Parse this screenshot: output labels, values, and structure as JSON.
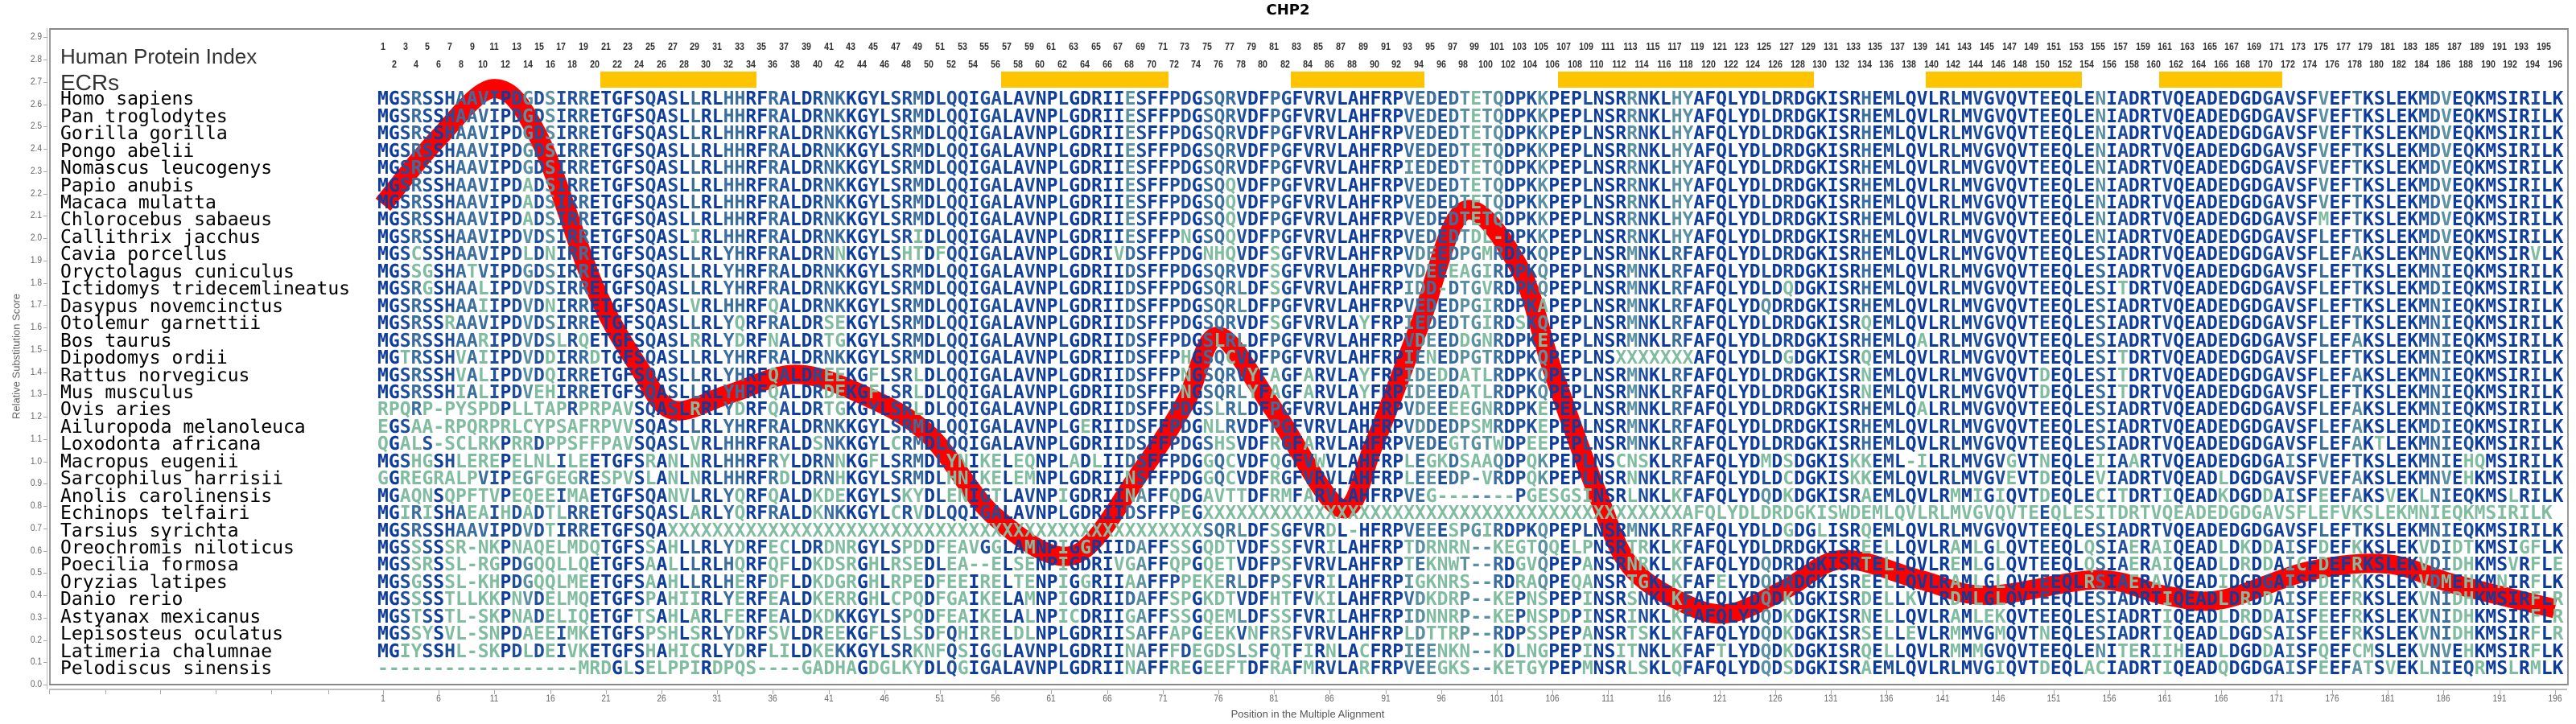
{
  "title": "CHP2",
  "labels": {
    "human_protein_index": "Human Protein Index",
    "ecrs": "ECRs"
  },
  "colors": {
    "curve": "#ff0000",
    "ecr": "#ffc400",
    "cons_high": "#0d3c9c",
    "cons_mid_high": "#1f4f9c",
    "cons_mid": "#3a6e9e",
    "cons_low": "#5a90a0",
    "cons_lowest": "#80bca0"
  },
  "chart_data": {
    "type": "line",
    "title": "CHP2",
    "xlabel": "Position in the Multiple Alignment",
    "ylabel": "Relative Substitution Score",
    "xlim": [
      1,
      196
    ],
    "ylim": [
      0.0,
      2.9
    ],
    "y_ticks": [
      "0.0",
      "0.1",
      "0.2",
      "0.3",
      "0.4",
      "0.5",
      "0.6",
      "0.7",
      "0.8",
      "0.9",
      "1.0",
      "1.1",
      "1.2",
      "1.3",
      "1.4",
      "1.5",
      "1.6",
      "1.7",
      "1.8",
      "1.9",
      "2.0",
      "2.1",
      "2.2",
      "2.3",
      "2.4",
      "2.5",
      "2.6",
      "2.7",
      "2.8",
      "2.9"
    ],
    "x_ticks": [
      1,
      6,
      11,
      16,
      21,
      26,
      31,
      36,
      41,
      46,
      51,
      56,
      61,
      66,
      71,
      76,
      81,
      86,
      91,
      96,
      101,
      106,
      111,
      116,
      121,
      126,
      131,
      136,
      141,
      146,
      151,
      156,
      161,
      166,
      171,
      176,
      181,
      186,
      191,
      196
    ],
    "position_count": 196,
    "series": [
      {
        "name": "Relative Substitution Score",
        "x": [
          1,
          6,
          11,
          15,
          20,
          24,
          27,
          32,
          38,
          44,
          50,
          56,
          63,
          69,
          73,
          76,
          81,
          87,
          90,
          94,
          98,
          103,
          106,
          110,
          113,
          118,
          122,
          127,
          132,
          139,
          145,
          155,
          161,
          166,
          174,
          181,
          187,
          196
        ],
        "y": [
          2.15,
          2.45,
          2.67,
          2.45,
          1.78,
          1.42,
          1.23,
          1.3,
          1.39,
          1.3,
          1.12,
          0.75,
          0.58,
          0.95,
          1.26,
          1.56,
          1.23,
          0.79,
          1.08,
          1.6,
          2.12,
          1.87,
          1.41,
          0.86,
          0.53,
          0.36,
          0.32,
          0.43,
          0.56,
          0.47,
          0.4,
          0.47,
          0.4,
          0.38,
          0.51,
          0.54,
          0.45,
          0.34
        ]
      }
    ],
    "ecrs": [
      [
        21,
        34
      ],
      [
        57,
        71
      ],
      [
        83,
        94
      ],
      [
        107,
        129
      ],
      [
        140,
        153
      ],
      [
        161,
        171
      ]
    ]
  },
  "alignment": [
    {
      "species": "Homo sapiens",
      "seq": "MGSRSSHAAVIPDGDSIRRETGFSQASLLRLHHRFRALDRNKKGYLSRMDLQQIGALAVNPLGDRIIESFFPDGSQRVDFPGFVRVLAHFRPVEDEDTETQDPKKPEPLNSRRNKLHYAFQLYDLDRDGKISRHEMLQVLRLMVGVQVTEEQLENIADRTVQEADEDGDGAVSFVEFTKSLEKMDVEQKMSIRILK"
    },
    {
      "species": "Pan troglodytes",
      "seq": "MGSRSSHAAVIPDGDSIRRETGFSQASLLRLHHRFRALDRNKKGYLSRMDLQQIGALAVNPLGDRIIESFFPDGSQRVDFPGFVRVLAHFRPVEDEDTETQDPKKPEPLNSRRNKLHYAFQLYDLDRDGKISRHEMLQVLRLMVGVQVTEEQLENIADRTVQEADEDGDGAVSFVEFTKSLEKMDVEQKMSIRILK"
    },
    {
      "species": "Gorilla gorilla",
      "seq": "MGSRSSHAAVIPDGDSIRRETGFSQASLLRLHHRFRALDRNKKGYLSRMDLQQIGALAVNPLGDRIIESFFPDGSQRVDFPGFVRVLAHFRPVEDEDTETQDPKKPEPLNSRRNKLHYAFQLYDLDRDGKISRHEMLQVLRLMVGVQVTEEQLENIADRTVQEADEDGDGAVSFVEFTKSLEKMDVEQKMSIRILK"
    },
    {
      "species": "Pongo abelii",
      "seq": "MGSRSSHAAVIPDGDSIRRETGFSQASLLRLHHRFRALDRNKKGYLSRMDLQQIGALAVNPLGDRIIESFFPDGSQRVDFPGFVRVLAHFRPVEDEDTETQDPKKPEPLNSRRNKLHYAFQLYDLDRDGKISRHEMLQVLRLMVGVQVTEEQLENIADRTVQEADEDGDGAVSFVEFTKSLEKMDVEQKMSIRILK"
    },
    {
      "species": "Nomascus leucogenys",
      "seq": "MGSRSSHAAVIPDGDSIRRETGFSQASLLRLHHRFRALDRNKKGYLSRMDLQQIGALAVNPLGDRIIESFFPDGSQRVDFPGFVRVLAHFRPIEDEDTETQDPKKPEPLNSRRNKLHYAFQLYDLDRDGKISRHEMLQVLRLMVGVQVTEEQLENIADRTVQEADEDGDGAVSFVEFTKSLEKMDVEQKMSIRILK"
    },
    {
      "species": "Papio anubis",
      "seq": "MGSRSSHAAVIPDADSIRRETGFSQASLLRLHHRFRALDRNKKGYLSRMDLQQIGALAVNPLGDRIIESFFPDGSQQVDFPGFVRVLAHFRPVEDEDTETQDPKKPEPLNSRRNKLHYAFQLYDLDRDGKISRHEMLQVLRLMVGVQVTEEQLENIADRTVQEADEDGDGAVSFVEFTKSLEKMDVEQKMSIRILK"
    },
    {
      "species": "Macaca mulatta",
      "seq": "MGSRSSHAAVIPDADSIRRETGFSQASLLRLHHRFRALDRNKKGYLSRMDLQQIGALAVNPLGDRIIESFFPDGSQQVDFPGFVRVLAHFRPVEDEDTETQDPKKPEPLNSRRNKLHYAFQLYDLDRDGKISRHEMLQVLRLMVGVQVTEEQLENIADRTVQEADEDGDGAVSFVEFTKSLEKMDVEQKMSIRILK"
    },
    {
      "species": "Chlorocebus sabaeus",
      "seq": "MGSRSSHAAVIPDADSIRRETGFSQASLLRLHHRFRALDRNKKGYLSRMDLQQIGALAVNPLGDRIIESFFPDGSQQVDFPGFVRVLAHFRPVEDEDTETQDPKKPEPLNSRRNKLHYAFQLYDLDRDGKISRHEMLQVLRLMVGVQVTEEQLENIADRTVQEADEDGDGAVSFMEFTKSLEKMDVEQKMSIRILK"
    },
    {
      "species": "Callithrix jacchus",
      "seq": "MGSRSSHAAVIPDVDSIRRETGFSQASLIRLHHRFRALDRNKKGYLSRIDLQQIGALAVNPLGDRIIESFFPNGSQQVDFPGFVRVLAHFRPVEDEDTDL-DPKKPEPLNSRRNKLHYAFQLYDLDRDGKISRHEMLQVLRLMVGVQVTEEQLENIADRTVQEADEDGDGAVSFLEFTKSLEKMDVEQKMSIRILK"
    },
    {
      "species": "Cavia porcellus",
      "seq": "MGSCSSHAAVIPDLDNIRRETGFSQASLLRLYHRFRALDRNNKGYLSHTDFQQIGALAVNPLGDRIVDSFFPDGNHQVDFSGFVRVLAHFRPVDEEDPGMRDPKQPEPLNSRMNKLRFAFQLYDLDRDGKISRHEMLQVLRLMVGVQVTEEQLESIADRTVQEADEDGDGAVSFLEFAKSLEKMNVEQKMSIRVLK"
    },
    {
      "species": "Oryctolagus cuniculus",
      "seq": "MGSSGSHATVIPDGDSIRRETGFSQASLLRLYHRFRALDRNKKGYLSRMDLQQIGALAVNPLGDRIIDSFFPDGSQRVDFSGFVRVLAHFRPVDEEEAGIRDPKQPEPLNSRMNKLRFAFQLYDLDRDGKISRHEMLQVLRLMVGVQVTEEQLESIADRTVQEADEDGDGAVSFLEFTKSLEKMNIEQKMSIRILK"
    },
    {
      "species": "Ictidomys tridecemlineatus",
      "seq": "MGSRGSHAALIPDVDSIRRETGFSQASLLRLYHRFRALDRNKKGYLSRMDLQQIGALAVNPLGDRIIDSFFPDGSQRLDFSGFVRVLAHFRPIDD-DTGVRDPKQPEPLNSRMNKLRFAFQLYDLDQDGKISRHEMLQVLRLMVGVQVTEEQLESITDRTVQEADEDGDGAVSFLEFTKSLEKMDIEQKMSIRILK"
    },
    {
      "species": "Dasypus novemcinctus",
      "seq": "MGSRSSHAAIIPDVDNIRRETGFSQASLVRLHHRFQALDRNKKGYLSRMDLQQIGALAVNPLGDRIIDSFFPDGSQRLDFPGFVRVLAHFRPVEDEDPGIRDPKAPEPLNSRMNKLRFAFQLYDQDRDGKISRHEMLQVLRLMVGVQVTEEQLESIADRTVQEADEDGDGAVSFLEFTKSLEKMNIEQKMSIRILK"
    },
    {
      "species": "Otolemur garnettii",
      "seq": "MGSRSSRAAVIPDVDSIRRETGFSQASLLRLYQRFRALDRSEKGYLSRMDLQQIGALAVNPLGDRIIDSFFPDGSQRVDFSGFVRVLAYFRPIEDEDTGIRDSKQPEPLNSRMNKLRFAFQLYDLDRDGKISRQEMLQVLRLMVGVQVTEEQLESIADRTVQEADEDGDGAVSFLEFTKSLEKMNIEQKMSIRILK"
    },
    {
      "species": "Bos taurus",
      "seq": "MGSRSSHAARIPDVDSLRQETGFSQASLRRLYDRFNALDRTGKGYLSRMDLQQIGALAVNPLGDRIIDSFFPDGSLRLDFPGFVRVLAHFRPVDEEDDGNRDPKEPEPLNSRMNKLRFAFQLYDLDRDGKISRHEMLQALRLMVGVQVTEEQLESIADRTVQEADEDGDGAVSFLEFAKSLEKMNIEQKMSIRILK"
    },
    {
      "species": "Dipodomys ordii",
      "seq": "MGTRSSHVAIIPDVDDIRRDTGFSQASLLRLYHRFRALDRNKKGYLSRMDLQQIGALAVNPLGDRIIDSFFPHGSQCVDFPGFVRVLAHFRPIENEDPGTRDPKQPEPLNSXXXXXXXAFQLYDLDGDGKISRQEMLQVLRLMVGVQVTEEQLESITDRTVQEADEDGDGAVSFLEFTKSLEKMNIEQKMSIRILK"
    },
    {
      "species": "Rattus norvegicus",
      "seq": "MGSRSSHVALIPDVDQIRRETGFSQASLLRLYHRFQALDREEKGFLSRLDLQQIGALAVNPLGDRIIDSFFPNGSQRVYFAGFARVLAYFRPIDEDDATLRDPKQPEPLNSRMNKLRFAFQLYDLDRDGKISRNEMLQVLRLMVGVQVTDEQLESITDRTVQEADEDGDGAVSFLEFAKSLEKMNIEQKMSIRILK"
    },
    {
      "species": "Mus musculus",
      "seq": "MGSRSSHIALIPDVEHIRRETGFSQASLLRLYHRFQALDRDEKGFLSRLDLQQIGALAVNPLGDRIIDSFFPNGSQRLYFAGFARVLAYFRPIDEEDATLRDPKQPEPLNSRMNKLRFAFQLYDLDRDGKISRNEMLQVLRLMVGVQVTDEQLESITDRTVQEADEDGDGAVSFLEFTKSLEKMNIEQKMSIRILK"
    },
    {
      "species": "Ovis aries",
      "seq": "RPQRP-PYSPDPLLTAPRPRPAVSQASLRRLYDRFQALDRTGKGYLSRLDLQQIGALAVNPLGDRIIDSFFPDGSLRLDFPGFVRVLAHFRPVDEEEEGNRDPKEPEPLNSRMNKLRFAFQLYDLDRDGKISRHEMLQALRLMVGVQVTEEQLESIADRTVQEADEDGDGAVSFLEFAKSLEKMNIEQKMSIRILK"
    },
    {
      "species": "Ailuropoda melanoleuca",
      "seq": "EGSAA-RPQRPRLCYPSAFRPVVSQASLLRLYHRFRALDRNKKGYLSRMDLQQIGALAVNPLGERIIDSFFPDGNLRVDFPGFVRVLAHFRPVDDEDPSMRDPKEPEPLNSRMNKLRFAFQLYDLDRDGKISRHEMLQVLRLMVGVQVTEEQLESIADRTVQEADEDGDGAVSFLEFAKSLEKMDIEQKMSIRILK"
    },
    {
      "species": "Loxodonta africana",
      "seq": "QGALS-SCLRKPRRDPPSFFPAVSQASLVRLHHRFRALDSNKKGYLCRMDLQQIGALAVNPLGDRIIDSFFPDGSHSVDFRGFARVLAHFRPVEDEGTGTWDPEEPEPLNSRMNKLRFAFQLYDLDRDGKISRHEMLQVLRLMVGVQVTEEQLESIADRTVQEADEDGDGAVSFLEFAKTLEKMNIEQKMSIRILK"
    },
    {
      "species": "Macropus eugenii",
      "seq": "MGSHGSHLEREPELNLILEETGFSRANLNRLHHRFRYLDRNNKGFLSRMDLYNIKELEQNPLADLIIDSFFPDGGQCVDFQGFVWVLAHFRPLEGKDSAAQDPQKPEPLNSCNSKLRFAFQLYDMDSDGKISKKEML-ILRLMVGVGVTNEQLEIIAARTVQEADEDGDGAISFVEFTKSLEKMNIEHQMSIRILK"
    },
    {
      "species": "Sarcophilus harrisii",
      "seq": "GGREGRALPVIPEGFGEGRESPVSLANLNRLHHRFRDLDRNHKGYLSRMDLHNIKELEMNPLGDRIINSFFPDGGQCVDFRGFVRVLAHFRPLEEEDP-VRDPQKPEPLNSRNNKLRFAFQLYDLDCDGKISKKEMLQVLRLMVGVEVTDEQLEVIADRTVQEADLDGDGAVSFVEFAKSLEKMNVEHKMSIRILK"
    },
    {
      "species": "Anolis carolinensis",
      "seq": "MGAQNSQPFTVPEQEEIMAETGFSQANVLRLYQRFQALDKDEKGYLSKYDLENIGTLAVNPIGDRIINAFFQDGAVTTDFRMFARVLAHFRPVEG-------PGESGSINSRLNKLKFAFQLYDQDKDGKISRAEMLQVLRMMIGIQVTDEQLECITDRTIQEADKDGDDAISFEEFAKSVEKLNIEQKMSLRILK"
    },
    {
      "species": "Echinops telfairi",
      "seq": "MGIRISHAEAIHDADTLRRETGFSQASLARLYQRFRALDKNKKGYLCRVDLQQIGALAVNPLGDRIIDSFFPEGXXXXXXXXXXXXXXXXXXXXXXXXXXXXXXXXXXXXXXXXXXXAFQLYDLDRDGKISWDEMLQVLRLMVGVQVTEEQLESITDRTVQEADEDGDGAVSFLEFVKSLEKMNIEQKMSIRILK"
    },
    {
      "species": "Tarsius syrichta",
      "seq": "MGSRSSHAAVIPDVDTIRRETGFSQAXXXXXXXXXXXXXXXXXXXXXXXXXXXXXXXXXXXXXXXXXXXXXXXXSQRLDFSGFVRDL-HFRPVEEESPGIRDPKQPEPLNSRMNKLRFAFQLYDLDGDGLISRQEMLQVLRLMVGVQVTEEQLESIADRTVQEADEDGDGAVSFLEFTKSLEKMNIEQKMSIRILK"
    },
    {
      "species": "Oreochromis niloticus",
      "seq": "MGSSSSSR-NKPNAQELMDQTGFSSAHLLRLYDRFECLDRDNRGYLSPDDFEAVGGLAMNPIGGRIIDAFFSSGQDTVDFSSFVRILAHFRPTDRNRN--KEGTQQELPNSRTRKLKFAFQLYDLDRDGKISREELLQVLRAMLGLQVTEEQLQSIAERAIQEADLDKDDAISFDEFKKSLEKVDIDTKMSIGFLK"
    },
    {
      "species": "Poecilia formosa",
      "seq": "MGSSRSSL-RGPDGQQLLQETGFSAALLLRLHQRFQFLDKDSRGHLRSEDLEA--ELSENPIGDRIVGAFFQPGQETVDFPSFVRVLAHFRPTEKNWT--RDGVQPEPANSRNRKLKFAFQLYDQDRDGKISRTELLQVLREMLGLQVTEEQLQSIAERAIQEADLDRDDAICFDEFRKSLEKVDIDHKMSVRFLE"
    },
    {
      "species": "Oryzias latipes",
      "seq": "MGSGSSSL-KHPDGQQLMEETGFSAAHLLRLHERFDFLDKDGRGHLRPEDFEEIRELTENPIGGRIIAAFFPPEKERLDFPSFVRILAHFRPIGKNRS--RDRAQPEQANSRTGKLKFAFELYDQDRDGKISREELLQVLRAMLGLQVTEEQLRSIAERAVQEADIDGDGAISFDEFKKSLEKVDMEHKMNIRFLK"
    },
    {
      "species": "Danio rerio",
      "seq": "MGSSSSTLLKKPNVDELMQETGFSPAHIIRLYERFEALDKERRGHLCPQDFGAIKELAMNPIGDRIIDAFFSPGKDTVDFHTFVKILAHFRPVDKDRP--KEPNSPEPINSRSNKLKFAFQLYDQDKDGKISRDELLKVLRDMLGLQVTEEQLESIADRTIQEADLDRDDAISFEEFRKSLEKVNIDHKMSIRFLR"
    },
    {
      "species": "Astyanax mexicanus",
      "seq": "MGSTSSTL-SKPNADELIQETGFTSAHLARLFERFEALDKDKKGYLSPQDFEAIKELALNPICDRIIGAFFSSGQEMLDFSSFVRILAHFRPIDNNRP--KEPNSPDPINSRINKLKFAFQLYDQDKDGKISRNELLQVLRAMLEKQVTEEQLESIADRTIQEADLDRDDAISFEEFRKSLEKVNIDHKMSIRFLR"
    },
    {
      "species": "Lepisosteus oculatus",
      "seq": "MGSSYSVL-SNPDAEEIMKETGFSPSHLSRLYDRFSVLDREEKGFLSLSDFQHIRELDLNPLGDRIISAFFAPGEEKVNFRSFVRVLAHFRPLDTTRP--RDPSSPEPANSRTSKLKFAFQLYDQDKDGKISRSELLEVLRMMVGMQVTNEQLESIADRTIQEADLDGDSAISFEEFRKSLEKVNIDHKMSIRFLR"
    },
    {
      "species": "Latimeria chalumnae",
      "seq": "MGIYSSHL-SKPDLDEIVKETGFSHAHICRLYDRFLILDKEKKGYLSRKNFQSIGGLAVNPLGDRIINAFFFDEGDSLSFQTFIRNLACFRPIEENKN--KDLNGPEPINSITNKLKFAFTLYDQDKDGKISRQELLQVLRMMMGVQVTEEQLENITERIIHEADLDGDDAISFQEFCMSLEKVNVEHKMSIRFLK"
    },
    {
      "species": "Pelodiscus sinensis",
      "seq": "------------------MRDGLSELPPIRDPQS----GADHAGDGLKYDLQGIGALAVNPLGDRIINAFFREGEEFTDFRAFMRVLARFRPVEEGKS--KETGYPEPMNSRLSKLQFAFQLYDQDSDGKISRAEMLQVLRLMVGIQVTDEQLACIADRTIQEADQDGDGAISFEEFATSVEKLNIEQRMSLRMLK"
    }
  ]
}
